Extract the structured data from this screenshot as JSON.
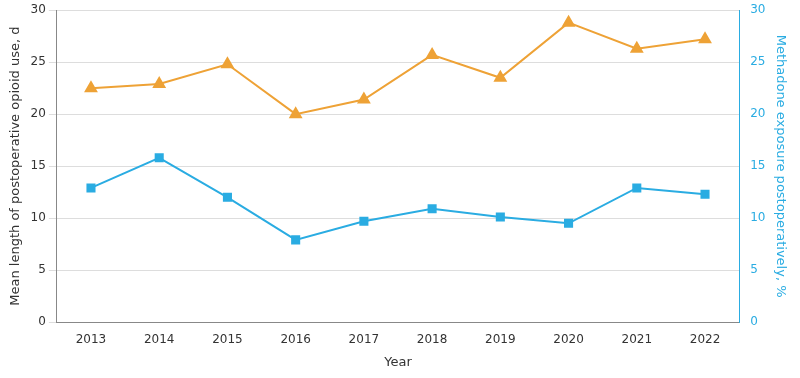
{
  "chart_data": {
    "type": "line",
    "x_label": "Year",
    "y_label": "Mean length of postoperative opioid use, d",
    "y2_label": "Methadone exposure postoperatively, %",
    "categories": [
      "2013",
      "2014",
      "2015",
      "2016",
      "2017",
      "2018",
      "2019",
      "2020",
      "2021",
      "2022"
    ],
    "series": [
      {
        "color": "#eea236",
        "marker": "triangle",
        "axis": "y",
        "values": [
          22.5,
          22.9,
          24.8,
          20.0,
          21.4,
          25.7,
          23.5,
          28.8,
          26.3,
          27.2
        ]
      },
      {
        "color": "#2aace2",
        "marker": "square",
        "axis": "y2",
        "values": [
          12.9,
          15.8,
          12.0,
          7.9,
          9.7,
          10.9,
          10.1,
          9.5,
          12.9,
          12.3
        ]
      }
    ],
    "ylim": [
      0,
      30
    ],
    "yticks": [
      0,
      5,
      10,
      15,
      20,
      25,
      30
    ],
    "y2lim": [
      0,
      30
    ],
    "y2ticks": [
      0,
      5,
      10,
      15,
      20,
      25,
      30
    ],
    "grid": true
  }
}
